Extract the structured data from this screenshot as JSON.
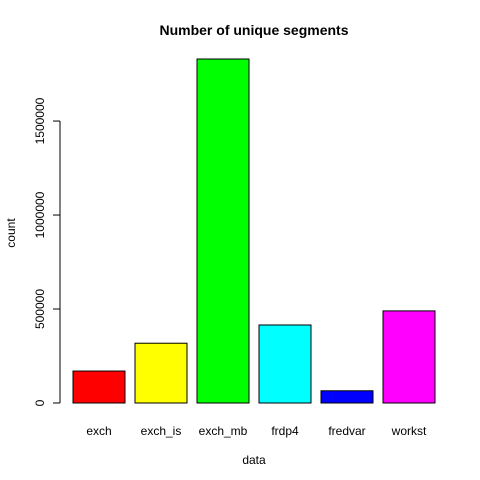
{
  "chart_data": {
    "type": "bar",
    "title": "Number of unique segments",
    "xlabel": "data",
    "ylabel": "count",
    "categories": [
      "exch",
      "exch_is",
      "exch_mb",
      "frdp4",
      "fredvar",
      "workst"
    ],
    "values": [
      170000,
      318000,
      1830000,
      415000,
      65000,
      490000
    ],
    "colors": [
      "#ff0000",
      "#ffff00",
      "#00ff00",
      "#00ffff",
      "#0000ff",
      "#ff00ff"
    ],
    "ylim": [
      0,
      1830000
    ],
    "yticks": [
      0,
      500000,
      1000000,
      1500000
    ],
    "ytick_labels": [
      "0",
      "500000",
      "1000000",
      "1500000"
    ],
    "grid": false,
    "legend": "none"
  }
}
